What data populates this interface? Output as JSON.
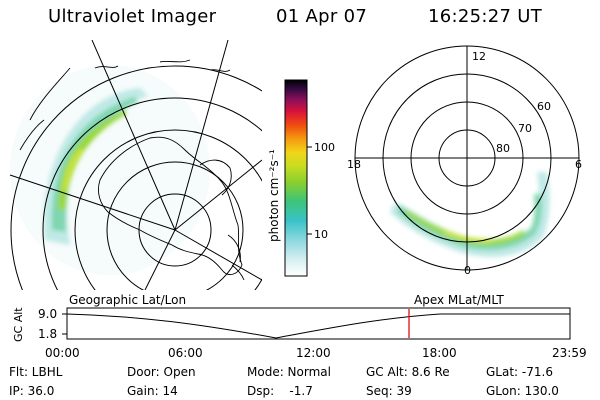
{
  "header": {
    "instrument": "Ultraviolet Imager",
    "date": "01 Apr 07",
    "time": "16:25:27 UT"
  },
  "colorbar": {
    "unit_label": "photon cm⁻²s⁻¹",
    "ticks": [
      "100",
      "10"
    ]
  },
  "polar_plot": {
    "lat_labels": [
      "60",
      "70",
      "80"
    ],
    "mlt_labels": {
      "top": "12",
      "left": "18",
      "right": "6",
      "bottom": "0"
    }
  },
  "plot_titles": {
    "left": "Geographic Lat/Lon",
    "right": "Apex MLat/MLT"
  },
  "altitude_plot": {
    "ylabel": "GC Alt",
    "y_ticks": [
      "9.0",
      "1.8"
    ],
    "x_ticks": [
      "00:00",
      "06:00",
      "12:00",
      "18:00",
      "23:59"
    ]
  },
  "status": {
    "filter": "Flt: LBHL",
    "ip": "IP: 36.0",
    "door": "Door: Open",
    "gain": "Gain: 14",
    "mode": "Mode: Normal",
    "dsp": "Dsp:    -1.7",
    "gc_alt": "GC Alt: 8.6 Re",
    "seq": "Seq: 39",
    "glat": "GLat: -71.6",
    "glon": "GLon: 130.0"
  }
}
